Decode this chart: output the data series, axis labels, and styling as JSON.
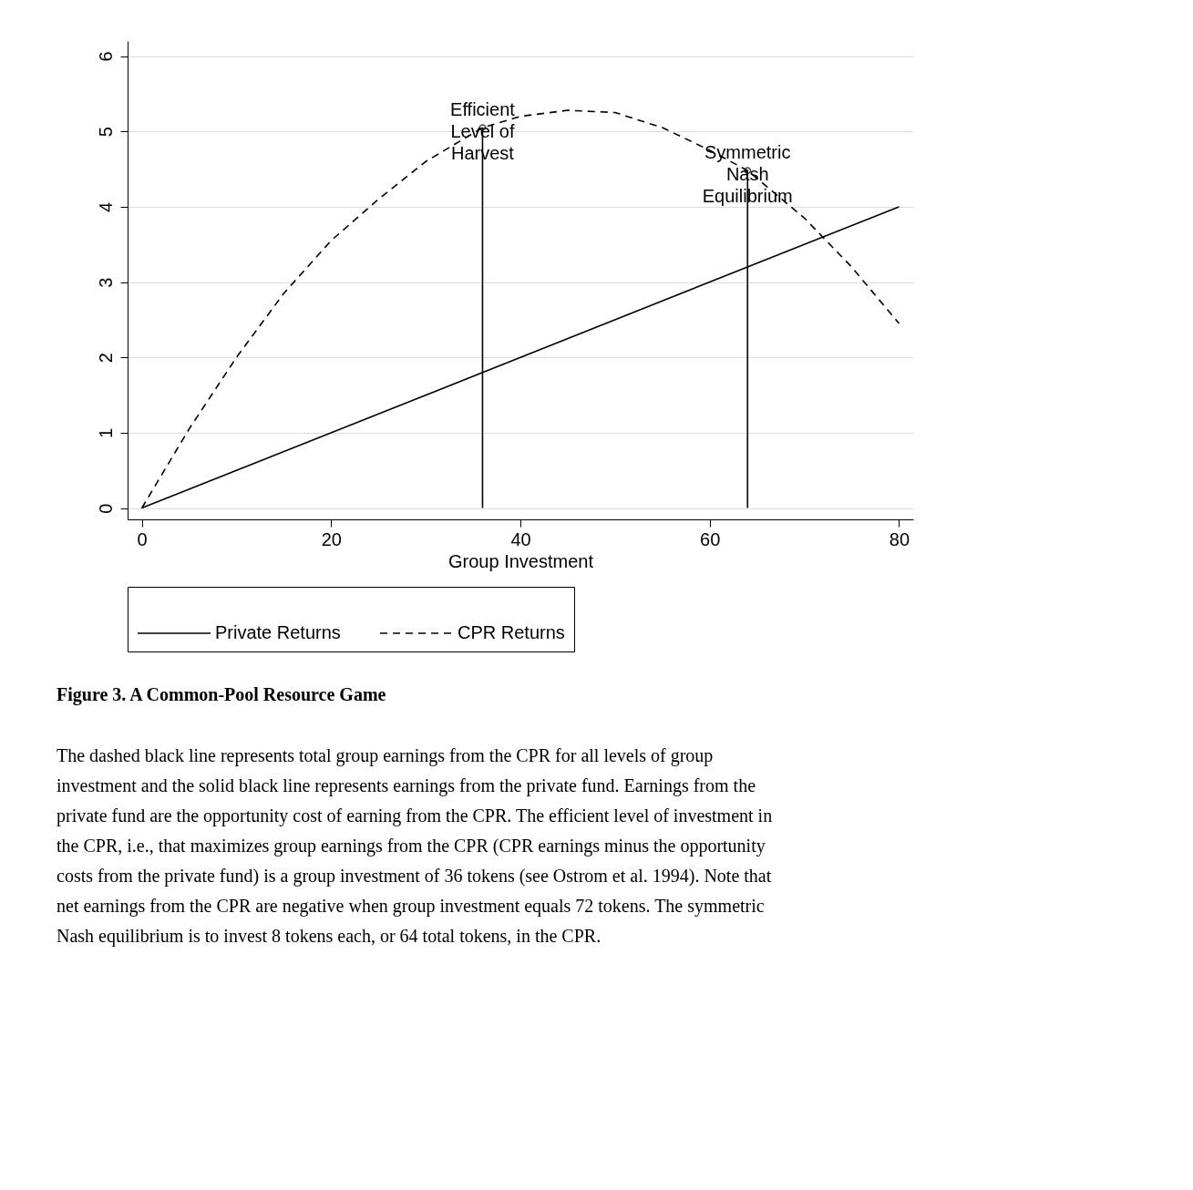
{
  "chart_data": {
    "type": "line",
    "xlabel": "Group Investment",
    "title": "Figure 3. A Common-Pool Resource Game",
    "xlim": [
      -1.5,
      81.5
    ],
    "ylim": [
      -0.15,
      6.2
    ],
    "xticks": [
      0,
      20,
      40,
      60,
      80
    ],
    "yticks": [
      0,
      1,
      2,
      3,
      4,
      5,
      6
    ],
    "grid": "y",
    "legend": "bottom",
    "series": [
      {
        "name": "Private Returns",
        "color": "#000000",
        "line_style": "solid",
        "x": [
          0,
          80
        ],
        "values": [
          0,
          4
        ]
      },
      {
        "name": "CPR Returns",
        "color": "#000000",
        "line_style": "dashed",
        "x": [
          0,
          5,
          10,
          15,
          20,
          25,
          30,
          36,
          40,
          45,
          50,
          55,
          60,
          64,
          70,
          75,
          80
        ],
        "values": [
          0,
          1.05,
          2.0,
          2.85,
          3.55,
          4.1,
          4.6,
          5.05,
          5.2,
          5.28,
          5.25,
          5.05,
          4.75,
          4.48,
          3.85,
          3.2,
          2.45
        ]
      },
      {
        "color": "#000000",
        "line_style": "solid",
        "x": [
          36,
          36
        ],
        "values": [
          0,
          5.05
        ]
      },
      {
        "color": "#000000",
        "line_style": "solid",
        "x": [
          64,
          64
        ],
        "values": [
          0,
          4.48
        ]
      },
      {
        "type": "scatter",
        "color": "#000000",
        "marker": "circle",
        "x": [
          36,
          64
        ],
        "values": [
          5.05,
          4.48
        ]
      }
    ],
    "annotations": [
      {
        "text": "Efficient\nLevel of\nHarvest",
        "x": 36,
        "y": 5.05
      },
      {
        "text": "Symmetric\nNash\nEquilibrium",
        "x": 64,
        "y": 4.48
      },
      "The dashed black line represents total group earnings from the CPR for all levels of group\ninvestment and the solid black line represents earnings from the private fund. Earnings from the\nprivate fund are the opportunity cost of earning from the CPR. The efficient level of investment in\nthe CPR, i.e., that maximizes group earnings from the CPR (CPR earnings minus the opportunity\ncosts from the private fund) is a group investment of 36 tokens (see Ostrom et al. 1994). Note that\nnet earnings from the CPR are negative when group investment equals 72 tokens. The symmetric\nNash equilibrium is to invest 8 tokens each, or 64 total tokens, in the CPR."
    ]
  }
}
